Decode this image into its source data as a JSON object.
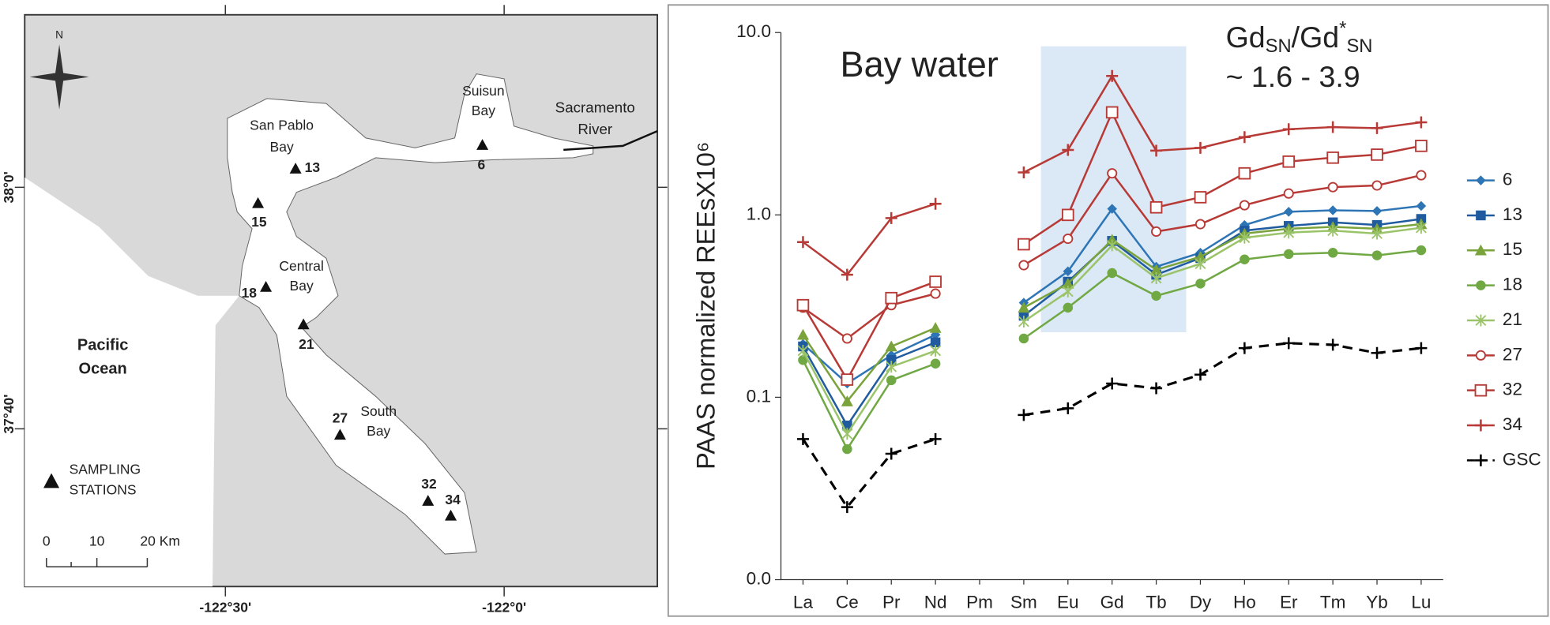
{
  "map": {
    "compass": "N",
    "places": [
      "San Pablo",
      "Bay",
      "Suisun",
      "Bay",
      "Sacramento",
      "River",
      "Central",
      "Bay",
      "Pacific",
      "Ocean",
      "South",
      "Bay"
    ],
    "stations": [
      "6",
      "13",
      "15",
      "18",
      "21",
      "27",
      "32",
      "34"
    ],
    "legend": [
      "SAMPLING",
      "STATIONS"
    ],
    "scale": [
      "0",
      "10",
      "20 Km"
    ],
    "x_axis": [
      "-122°30'",
      "-122°0'"
    ],
    "y_axis": [
      "38°0'",
      "37°40'"
    ]
  },
  "chart_data": {
    "type": "line",
    "y_label": "PAAS normalized REEsX10⁶",
    "annotations": [
      "Bay water",
      "~ 1.6 - 3.9"
    ],
    "ratio_label": [
      "Gd",
      "SN",
      "/Gd",
      "*",
      "SN"
    ],
    "categories": [
      "La",
      "Ce",
      "Pr",
      "Nd",
      "Pm",
      "Sm",
      "Eu",
      "Gd",
      "Tb",
      "Dy",
      "Ho",
      "Er",
      "Tm",
      "Yb",
      "Lu"
    ],
    "log_scale": true,
    "ylim": [
      0.01,
      10
    ],
    "yticks": [
      {
        "value": 10,
        "label": "10.0"
      },
      {
        "value": 1,
        "label": "1.0"
      },
      {
        "value": 0.1,
        "label": "0.1"
      },
      {
        "value": 0.01,
        "label": "0.0"
      }
    ],
    "series": [
      {
        "name": "6",
        "color": "#2e75b6",
        "marker": "diamond",
        "values": [
          0.196,
          0.119,
          0.17,
          0.22,
          null,
          0.33,
          0.49,
          1.08,
          0.52,
          0.62,
          0.88,
          1.04,
          1.06,
          1.05,
          1.12
        ]
      },
      {
        "name": "13",
        "color": "#1f5b9e",
        "marker": "square",
        "values": [
          0.19,
          0.07,
          0.16,
          0.2,
          null,
          0.28,
          0.43,
          0.72,
          0.47,
          0.58,
          0.82,
          0.87,
          0.91,
          0.88,
          0.95
        ]
      },
      {
        "name": "15",
        "color": "#7aa33b",
        "marker": "triangle",
        "values": [
          0.22,
          0.095,
          0.19,
          0.24,
          null,
          0.31,
          0.42,
          0.73,
          0.5,
          0.59,
          0.79,
          0.84,
          0.86,
          0.84,
          0.89
        ]
      },
      {
        "name": "18",
        "color": "#70a844",
        "marker": "circle",
        "values": [
          0.16,
          0.052,
          0.124,
          0.153,
          null,
          0.21,
          0.31,
          0.48,
          0.36,
          0.42,
          0.57,
          0.61,
          0.62,
          0.6,
          0.64
        ]
      },
      {
        "name": "21",
        "color": "#9bc46a",
        "marker": "star",
        "values": [
          0.18,
          0.063,
          0.147,
          0.18,
          null,
          0.26,
          0.38,
          0.68,
          0.45,
          0.54,
          0.75,
          0.8,
          0.82,
          0.79,
          0.85
        ]
      },
      {
        "name": "27",
        "color": "#b73a36",
        "marker": "open-circle",
        "values": [
          0.31,
          0.21,
          0.32,
          0.37,
          null,
          0.53,
          0.74,
          1.69,
          0.81,
          0.89,
          1.13,
          1.31,
          1.42,
          1.45,
          1.65
        ]
      },
      {
        "name": "32",
        "color": "#b73a36",
        "marker": "open-square",
        "values": [
          0.32,
          0.125,
          0.35,
          0.43,
          null,
          0.69,
          1.0,
          3.65,
          1.1,
          1.25,
          1.69,
          1.96,
          2.06,
          2.14,
          2.39
        ]
      },
      {
        "name": "34",
        "color": "#b73a36",
        "marker": "plus",
        "values": [
          0.71,
          0.47,
          0.96,
          1.15,
          null,
          1.71,
          2.27,
          5.78,
          2.25,
          2.33,
          2.67,
          2.95,
          3.03,
          2.99,
          3.22
        ]
      },
      {
        "name": "GSC",
        "color": "#000000",
        "marker": "plus",
        "dashed": true,
        "values": [
          0.059,
          0.025,
          0.049,
          0.059,
          null,
          0.08,
          0.087,
          0.119,
          0.112,
          0.133,
          0.186,
          0.198,
          0.194,
          0.175,
          0.186
        ]
      }
    ]
  }
}
